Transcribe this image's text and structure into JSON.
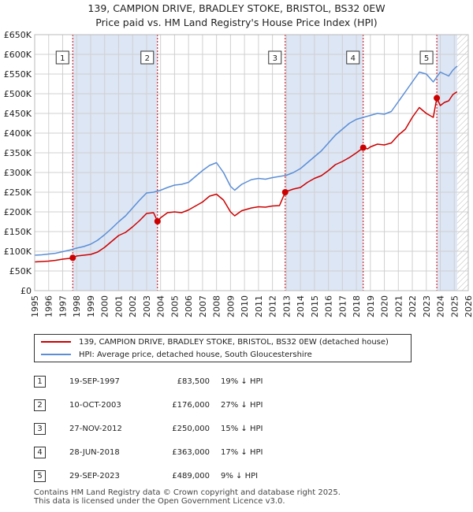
{
  "header": {
    "title_line1": "139, CAMPION DRIVE, BRADLEY STOKE, BRISTOL, BS32 0EW",
    "title_line2": "Price paid vs. HM Land Registry's House Price Index (HPI)"
  },
  "colors": {
    "property": "#cc0000",
    "hpi": "#5b8ed6",
    "shade": "#dde6f5",
    "grid": "#d0d0d0",
    "marker_line": "#cc0000"
  },
  "chart_data": {
    "type": "line",
    "ylim": [
      0,
      650000
    ],
    "xlim": [
      1995,
      2026
    ],
    "y_ticks": [
      {
        "value": 0,
        "label": "£0"
      },
      {
        "value": 50000,
        "label": "£50K"
      },
      {
        "value": 100000,
        "label": "£100K"
      },
      {
        "value": 150000,
        "label": "£150K"
      },
      {
        "value": 200000,
        "label": "£200K"
      },
      {
        "value": 250000,
        "label": "£250K"
      },
      {
        "value": 300000,
        "label": "£300K"
      },
      {
        "value": 350000,
        "label": "£350K"
      },
      {
        "value": 400000,
        "label": "£400K"
      },
      {
        "value": 450000,
        "label": "£450K"
      },
      {
        "value": 500000,
        "label": "£500K"
      },
      {
        "value": 550000,
        "label": "£550K"
      },
      {
        "value": 600000,
        "label": "£600K"
      },
      {
        "value": 650000,
        "label": "£650K"
      }
    ],
    "x_ticks": [
      "1995",
      "1996",
      "1997",
      "1998",
      "1999",
      "2000",
      "2001",
      "2002",
      "2003",
      "2004",
      "2005",
      "2006",
      "2007",
      "2008",
      "2009",
      "2010",
      "2011",
      "2012",
      "2013",
      "2014",
      "2015",
      "2016",
      "2017",
      "2018",
      "2019",
      "2020",
      "2021",
      "2022",
      "2023",
      "2024",
      "2025",
      "2026"
    ],
    "shaded_ranges": [
      [
        1997.72,
        2003.78
      ],
      [
        2012.91,
        2018.49
      ],
      [
        2023.75,
        2025.2
      ]
    ],
    "hatched_range": [
      2025.2,
      2026
    ],
    "series": [
      {
        "name": "139, CAMPION DRIVE, BRADLEY STOKE, BRISTOL, BS32 0EW (detached house)",
        "color": "#cc0000",
        "x": [
          1995.0,
          1995.5,
          1996.0,
          1996.5,
          1997.0,
          1997.5,
          1997.72,
          1998.0,
          1998.5,
          1999.0,
          1999.5,
          2000.0,
          2000.5,
          2001.0,
          2001.5,
          2002.0,
          2002.5,
          2003.0,
          2003.5,
          2003.78,
          2004.0,
          2004.5,
          2005.0,
          2005.5,
          2006.0,
          2006.5,
          2007.0,
          2007.5,
          2008.0,
          2008.5,
          2009.0,
          2009.3,
          2009.8,
          2010.5,
          2011.0,
          2011.5,
          2012.0,
          2012.5,
          2012.91,
          2013.0,
          2013.5,
          2014.0,
          2014.5,
          2015.0,
          2015.5,
          2016.0,
          2016.5,
          2017.0,
          2017.5,
          2018.0,
          2018.49,
          2018.8,
          2019.0,
          2019.5,
          2020.0,
          2020.5,
          2021.0,
          2021.5,
          2022.0,
          2022.5,
          2023.0,
          2023.5,
          2023.75,
          2024.0,
          2024.3,
          2024.6,
          2024.9,
          2025.2
        ],
        "values": [
          73000,
          74000,
          75000,
          77000,
          80000,
          82000,
          83500,
          88000,
          90000,
          92000,
          98000,
          110000,
          125000,
          140000,
          148000,
          162000,
          178000,
          196000,
          198000,
          176000,
          185000,
          198000,
          200000,
          198000,
          205000,
          215000,
          225000,
          240000,
          245000,
          230000,
          200000,
          190000,
          203000,
          210000,
          213000,
          212000,
          215000,
          216000,
          250000,
          252000,
          258000,
          262000,
          275000,
          285000,
          292000,
          305000,
          320000,
          328000,
          338000,
          350000,
          363000,
          360000,
          365000,
          372000,
          370000,
          375000,
          395000,
          410000,
          440000,
          465000,
          450000,
          440000,
          489000,
          470000,
          478000,
          482000,
          498000,
          505000
        ]
      },
      {
        "name": "HPI: Average price, detached house, South Gloucestershire",
        "color": "#5b8ed6",
        "x": [
          1995.0,
          1995.5,
          1996.0,
          1996.5,
          1997.0,
          1997.5,
          1998.0,
          1998.5,
          1999.0,
          1999.5,
          2000.0,
          2000.5,
          2001.0,
          2001.5,
          2002.0,
          2002.5,
          2003.0,
          2003.5,
          2004.0,
          2004.5,
          2005.0,
          2005.5,
          2006.0,
          2006.5,
          2007.0,
          2007.5,
          2008.0,
          2008.5,
          2009.0,
          2009.3,
          2009.8,
          2010.5,
          2011.0,
          2011.5,
          2012.0,
          2012.5,
          2013.0,
          2013.5,
          2014.0,
          2014.5,
          2015.0,
          2015.5,
          2016.0,
          2016.5,
          2017.0,
          2017.5,
          2018.0,
          2018.5,
          2019.0,
          2019.5,
          2020.0,
          2020.5,
          2021.0,
          2021.5,
          2022.0,
          2022.5,
          2023.0,
          2023.5,
          2024.0,
          2024.3,
          2024.6,
          2024.9,
          2025.2
        ],
        "values": [
          90000,
          91000,
          93000,
          95000,
          99000,
          103000,
          108000,
          112000,
          118000,
          128000,
          142000,
          158000,
          175000,
          190000,
          210000,
          230000,
          248000,
          250000,
          255000,
          262000,
          268000,
          270000,
          275000,
          290000,
          305000,
          318000,
          325000,
          300000,
          265000,
          255000,
          270000,
          282000,
          285000,
          283000,
          287000,
          290000,
          293000,
          300000,
          310000,
          325000,
          340000,
          355000,
          375000,
          395000,
          410000,
          425000,
          435000,
          440000,
          445000,
          450000,
          448000,
          455000,
          480000,
          505000,
          530000,
          555000,
          550000,
          530000,
          555000,
          550000,
          545000,
          560000,
          570000
        ]
      }
    ],
    "sales": [
      {
        "label": "1",
        "x": 1997.72,
        "value": 83500
      },
      {
        "label": "2",
        "x": 2003.78,
        "value": 176000
      },
      {
        "label": "3",
        "x": 2012.91,
        "value": 250000
      },
      {
        "label": "4",
        "x": 2018.49,
        "value": 363000
      },
      {
        "label": "5",
        "x": 2023.75,
        "value": 489000
      }
    ]
  },
  "legend": {
    "property_label": "139, CAMPION DRIVE, BRADLEY STOKE, BRISTOL, BS32 0EW (detached house)",
    "hpi_label": "HPI: Average price, detached house, South Gloucestershire"
  },
  "sales_table": [
    {
      "num": "1",
      "date": "19-SEP-1997",
      "price": "£83,500",
      "hpi": "19% ↓ HPI"
    },
    {
      "num": "2",
      "date": "10-OCT-2003",
      "price": "£176,000",
      "hpi": "27% ↓ HPI"
    },
    {
      "num": "3",
      "date": "27-NOV-2012",
      "price": "£250,000",
      "hpi": "15% ↓ HPI"
    },
    {
      "num": "4",
      "date": "28-JUN-2018",
      "price": "£363,000",
      "hpi": "17% ↓ HPI"
    },
    {
      "num": "5",
      "date": "29-SEP-2023",
      "price": "£489,000",
      "hpi": "9% ↓ HPI"
    }
  ],
  "footer": {
    "line1": "Contains HM Land Registry data © Crown copyright and database right 2025.",
    "line2": "This data is licensed under the Open Government Licence v3.0."
  }
}
